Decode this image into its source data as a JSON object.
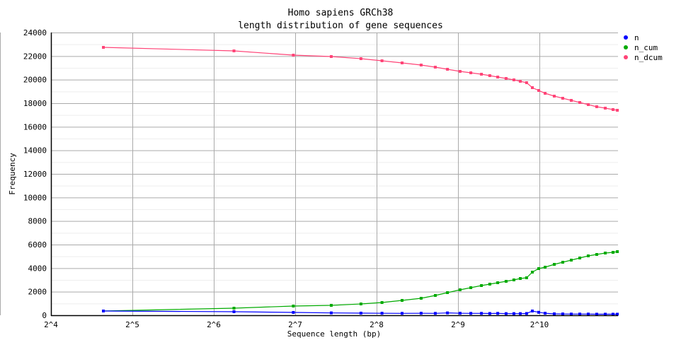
{
  "chart_data": {
    "type": "line",
    "title": "Homo sapiens GRCh38",
    "subtitle": "length distribution of gene sequences",
    "xlabel": "Sequence length (bp)",
    "ylabel": "Frequency",
    "xscale": "log2",
    "xlim": [
      16,
      2000
    ],
    "ylim": [
      0,
      24000
    ],
    "xticks": [
      {
        "v": 16,
        "label": "2^4"
      },
      {
        "v": 32,
        "label": "2^5"
      },
      {
        "v": 64,
        "label": "2^6"
      },
      {
        "v": 128,
        "label": "2^7"
      },
      {
        "v": 256,
        "label": "2^8"
      },
      {
        "v": 512,
        "label": "2^9"
      },
      {
        "v": 1024,
        "label": "2^10"
      }
    ],
    "yticks": [
      0,
      2000,
      4000,
      6000,
      8000,
      10000,
      12000,
      14000,
      16000,
      18000,
      20000,
      22000,
      24000
    ],
    "ytick_labels": [
      "0",
      "2000",
      "4000",
      "6000",
      "8000",
      "10000",
      "12000",
      "14000",
      "16000",
      "18000",
      "20000",
      "22000",
      "24000"
    ],
    "grid": true,
    "legend_position": "top-right",
    "x": [
      25,
      76,
      126,
      174,
      224,
      268,
      318,
      374,
      422,
      468,
      521,
      571,
      625,
      671,
      718,
      771,
      824,
      870,
      918,
      964,
      1018,
      1075,
      1162,
      1249,
      1343,
      1444,
      1552,
      1668,
      1794,
      1916,
      1988
    ],
    "series": [
      {
        "name": "n",
        "color": "#0000ff",
        "values": [
          360,
          300,
          240,
          200,
          180,
          170,
          160,
          170,
          160,
          200,
          170,
          160,
          160,
          150,
          160,
          140,
          140,
          140,
          150,
          360,
          250,
          170,
          120,
          110,
          100,
          100,
          100,
          90,
          90,
          90,
          90
        ]
      },
      {
        "name": "n_cum",
        "color": "#00aa00",
        "values": [
          360,
          600,
          780,
          840,
          960,
          1080,
          1260,
          1440,
          1680,
          1920,
          2160,
          2340,
          2520,
          2640,
          2760,
          2880,
          3000,
          3120,
          3180,
          3660,
          3960,
          4080,
          4320,
          4500,
          4680,
          4860,
          5040,
          5160,
          5280,
          5340,
          5400
        ]
      },
      {
        "name": "n_dcum",
        "color": "#ff4477",
        "values": [
          22740,
          22440,
          22080,
          21960,
          21780,
          21600,
          21420,
          21240,
          21060,
          20880,
          20700,
          20580,
          20460,
          20340,
          20220,
          20100,
          19980,
          19860,
          19740,
          19320,
          19080,
          18840,
          18600,
          18420,
          18240,
          18060,
          17880,
          17700,
          17580,
          17460,
          17400
        ]
      }
    ]
  }
}
